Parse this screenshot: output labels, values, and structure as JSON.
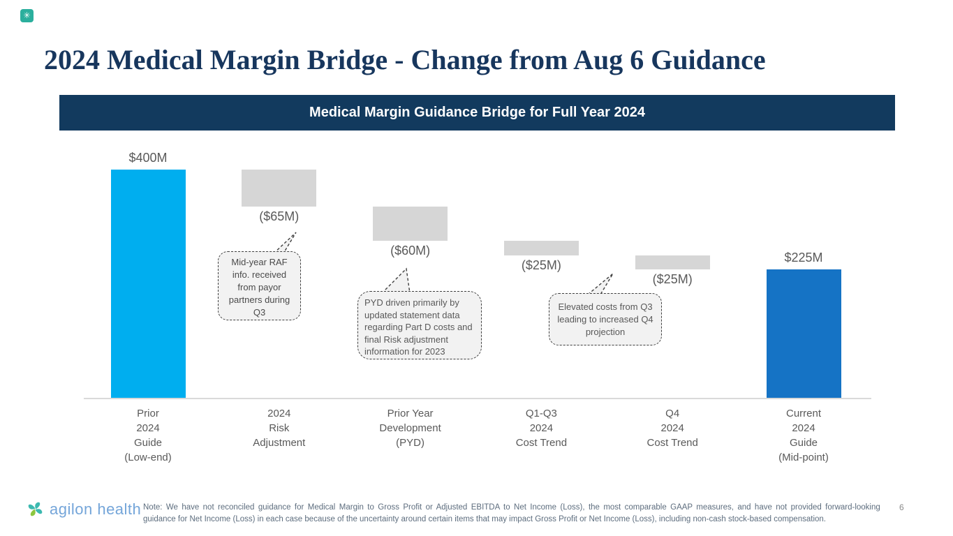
{
  "header": {
    "title": "2024 Medical Margin Bridge - Change from Aug 6 Guidance",
    "app_icon_glyph": "✳"
  },
  "banner": {
    "title": "Medical Margin Guidance Bridge for Full Year 2024"
  },
  "chart_data": {
    "type": "bar",
    "subtype": "waterfall",
    "title": "Medical Margin Guidance Bridge for Full Year 2024",
    "unit": "$M",
    "ylim": [
      0,
      400
    ],
    "grid": false,
    "legend": "none",
    "bars": [
      {
        "category": "Prior 2024 Guide (Low-end)",
        "category_lines": "Prior\n2024\nGuide\n(Low-end)",
        "value": 400,
        "start": 0,
        "end": 400,
        "label": "$400M",
        "label_position": "above",
        "role": "total",
        "color": "#00AEEF"
      },
      {
        "category": "2024 Risk Adjustment",
        "category_lines": "2024\nRisk\nAdjustment",
        "value": -65,
        "start": 400,
        "end": 335,
        "label": "($65M)",
        "label_position": "below",
        "role": "decrease",
        "color": "#D6D6D6"
      },
      {
        "category": "Prior Year Development (PYD)",
        "category_lines": "Prior Year\nDevelopment\n(PYD)",
        "value": -60,
        "start": 335,
        "end": 275,
        "label": "($60M)",
        "label_position": "below",
        "role": "decrease",
        "color": "#D6D6D6"
      },
      {
        "category": "Q1-Q3 2024 Cost Trend",
        "category_lines": "Q1-Q3\n2024\nCost Trend",
        "value": -25,
        "start": 275,
        "end": 250,
        "label": "($25M)",
        "label_position": "below",
        "role": "decrease",
        "color": "#D6D6D6"
      },
      {
        "category": "Q4 2024 Cost Trend",
        "category_lines": "Q4\n2024\nCost Trend",
        "value": -25,
        "start": 250,
        "end": 225,
        "label": "($25M)",
        "label_position": "below",
        "role": "decrease",
        "color": "#D6D6D6"
      },
      {
        "category": "Current 2024 Guide (Mid-point)",
        "category_lines": "Current\n2024\nGuide\n(Mid-point)",
        "value": 225,
        "start": 0,
        "end": 225,
        "label": "$225M",
        "label_position": "above",
        "role": "total",
        "color": "#1573C5"
      }
    ]
  },
  "callouts": [
    {
      "text": "Mid-year RAF info. received from payor partners during Q3"
    },
    {
      "text": "PYD driven primarily by updated statement data regarding Part D costs and final Risk adjustment information for 2023"
    },
    {
      "text": "Elevated costs from Q3 leading to increased Q4 projection"
    }
  ],
  "footer": {
    "logo_text": "agilon health",
    "note_line1": "Note: We have not reconciled guidance for Medical Margin to Gross Profit or Adjusted EBITDA to Net Income (Loss), the most comparable GAAP measures, and have not provided forward-looking",
    "note_line2": "guidance for Net Income (Loss) in each case because of the uncertainty around certain items that may impact Gross Profit or Net Income (Loss), including non-cash stock-based compensation.",
    "page_number": "6"
  },
  "colors": {
    "accent_cyan": "#00AEEF",
    "accent_blue": "#1573C5",
    "bar_gray": "#D6D6D6",
    "banner_navy": "#123A5E",
    "title_navy": "#17365D",
    "label_gray": "#595959",
    "note_slate": "#5D6D7E",
    "logo_blue": "#74A5D9",
    "logo_teal": "#3CB9B0",
    "logo_green": "#8CC63F"
  }
}
